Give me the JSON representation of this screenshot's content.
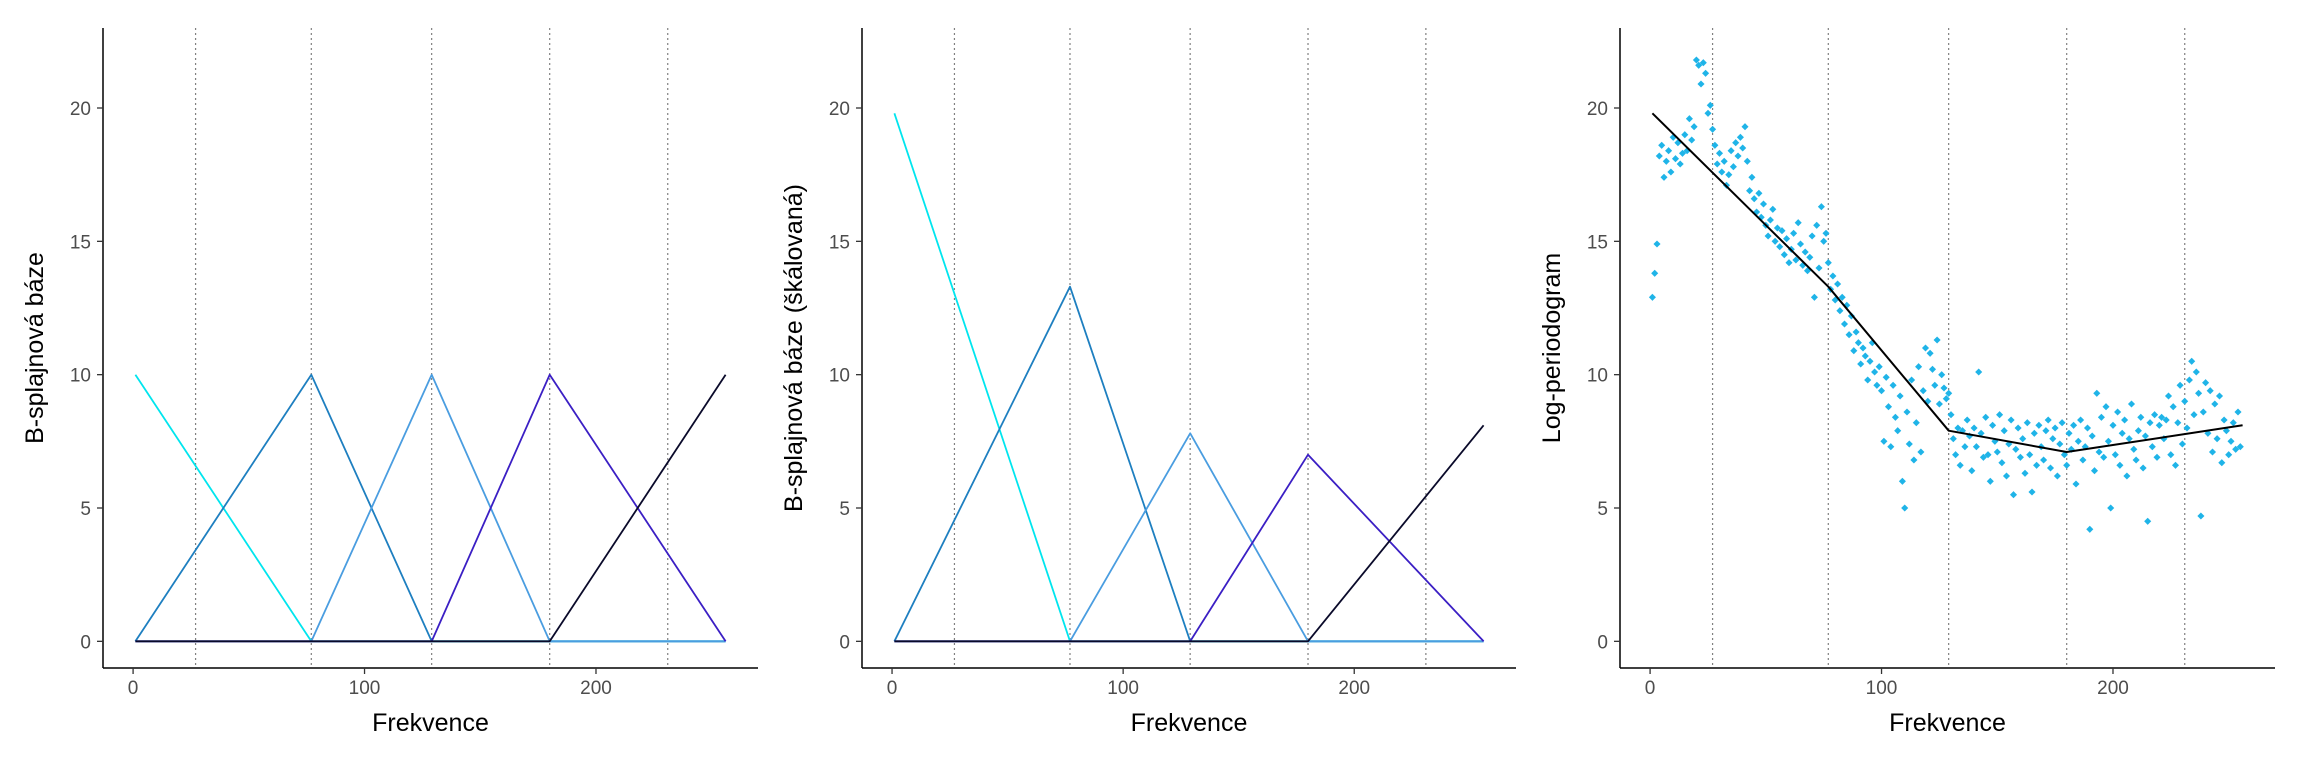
{
  "chart_data": [
    {
      "type": "line",
      "title": "",
      "xlabel": "Frekvence",
      "ylabel": "B-splajnová báze",
      "xlim": [
        -13,
        270
      ],
      "ylim": [
        -1,
        23
      ],
      "xticks": [
        "0",
        "100",
        "200"
      ],
      "yticks": [
        "0",
        "5",
        "10",
        "15",
        "20"
      ],
      "knots": [
        1,
        77,
        129,
        180,
        256
      ],
      "grid_vlines": [
        27,
        77,
        129,
        180,
        231
      ],
      "series": [
        {
          "color": "#00e5ee",
          "x": [
            1,
            77,
            129,
            180,
            256
          ],
          "y": [
            10,
            0,
            0,
            0,
            0
          ]
        },
        {
          "color": "#1e7fc0",
          "x": [
            1,
            77,
            129,
            180,
            256
          ],
          "y": [
            0,
            10,
            0,
            0,
            0
          ]
        },
        {
          "color": "#4a9de0",
          "x": [
            1,
            77,
            129,
            180,
            256
          ],
          "y": [
            0,
            0,
            10,
            0,
            0
          ]
        },
        {
          "color": "#3b1fc4",
          "x": [
            1,
            77,
            129,
            180,
            256
          ],
          "y": [
            0,
            0,
            0,
            10,
            0
          ]
        },
        {
          "color": "#0a0a2a",
          "x": [
            1,
            77,
            129,
            180,
            256
          ],
          "y": [
            0,
            0,
            0,
            0,
            10
          ]
        }
      ]
    },
    {
      "type": "line",
      "title": "",
      "xlabel": "Frekvence",
      "ylabel": "B-splajnová báze (škálovaná)",
      "xlim": [
        -13,
        270
      ],
      "ylim": [
        -1,
        23
      ],
      "xticks": [
        "0",
        "100",
        "200"
      ],
      "yticks": [
        "0",
        "5",
        "10",
        "15",
        "20"
      ],
      "knots": [
        1,
        77,
        129,
        180,
        256
      ],
      "grid_vlines": [
        27,
        77,
        129,
        180,
        231
      ],
      "series": [
        {
          "color": "#00e5ee",
          "x": [
            1,
            77,
            129,
            180,
            256
          ],
          "y": [
            19.8,
            0,
            0,
            0,
            0
          ]
        },
        {
          "color": "#1e7fc0",
          "x": [
            1,
            77,
            129,
            180,
            256
          ],
          "y": [
            0,
            13.3,
            0,
            0,
            0
          ]
        },
        {
          "color": "#4a9de0",
          "x": [
            1,
            77,
            129,
            180,
            256
          ],
          "y": [
            0,
            0,
            7.8,
            0,
            0
          ]
        },
        {
          "color": "#3b1fc4",
          "x": [
            1,
            77,
            129,
            180,
            256
          ],
          "y": [
            0,
            0,
            0,
            7.0,
            0
          ]
        },
        {
          "color": "#0a0a2a",
          "x": [
            1,
            77,
            129,
            180,
            256
          ],
          "y": [
            0,
            0,
            0,
            0,
            8.1
          ]
        }
      ]
    },
    {
      "type": "scatter",
      "title": "",
      "xlabel": "Frekvence",
      "ylabel": "Log-periodogram",
      "xlim": [
        -13,
        270
      ],
      "ylim": [
        -1,
        23
      ],
      "xticks": [
        "0",
        "100",
        "200"
      ],
      "yticks": [
        "0",
        "5",
        "10",
        "15",
        "20"
      ],
      "grid_vlines": [
        27,
        77,
        129,
        180,
        231
      ],
      "points_color": "#1fb4e8",
      "points": [
        [
          1,
          12.9
        ],
        [
          2,
          13.8
        ],
        [
          3,
          14.9
        ],
        [
          4,
          18.2
        ],
        [
          5,
          18.6
        ],
        [
          6,
          17.4
        ],
        [
          7,
          18.0
        ],
        [
          8,
          18.4
        ],
        [
          9,
          17.6
        ],
        [
          10,
          18.9
        ],
        [
          11,
          18.1
        ],
        [
          12,
          18.7
        ],
        [
          13,
          17.9
        ],
        [
          14,
          18.3
        ],
        [
          15,
          19.0
        ],
        [
          16,
          18.4
        ],
        [
          17,
          19.6
        ],
        [
          18,
          18.8
        ],
        [
          19,
          19.3
        ],
        [
          20,
          21.8
        ],
        [
          21,
          21.6
        ],
        [
          22,
          20.9
        ],
        [
          23,
          21.7
        ],
        [
          24,
          21.3
        ],
        [
          25,
          19.8
        ],
        [
          26,
          20.1
        ],
        [
          27,
          19.2
        ],
        [
          28,
          18.6
        ],
        [
          29,
          17.9
        ],
        [
          30,
          18.3
        ],
        [
          31,
          17.6
        ],
        [
          32,
          18.0
        ],
        [
          33,
          17.1
        ],
        [
          34,
          17.5
        ],
        [
          35,
          18.4
        ],
        [
          36,
          17.8
        ],
        [
          37,
          18.7
        ],
        [
          38,
          18.2
        ],
        [
          39,
          18.9
        ],
        [
          40,
          18.5
        ],
        [
          41,
          19.3
        ],
        [
          42,
          18.0
        ],
        [
          43,
          16.9
        ],
        [
          44,
          17.4
        ],
        [
          45,
          16.6
        ],
        [
          46,
          16.1
        ],
        [
          47,
          16.8
        ],
        [
          48,
          15.9
        ],
        [
          49,
          16.4
        ],
        [
          50,
          15.6
        ],
        [
          51,
          15.2
        ],
        [
          52,
          15.8
        ],
        [
          53,
          16.2
        ],
        [
          54,
          15.0
        ],
        [
          55,
          15.5
        ],
        [
          56,
          14.8
        ],
        [
          57,
          15.4
        ],
        [
          58,
          14.5
        ],
        [
          59,
          15.1
        ],
        [
          60,
          14.2
        ],
        [
          61,
          14.7
        ],
        [
          62,
          15.3
        ],
        [
          63,
          14.3
        ],
        [
          64,
          15.7
        ],
        [
          65,
          14.9
        ],
        [
          66,
          14.1
        ],
        [
          67,
          14.6
        ],
        [
          68,
          13.9
        ],
        [
          69,
          14.4
        ],
        [
          70,
          15.2
        ],
        [
          71,
          12.9
        ],
        [
          72,
          15.6
        ],
        [
          73,
          14.0
        ],
        [
          74,
          16.3
        ],
        [
          75,
          15.0
        ],
        [
          76,
          15.3
        ],
        [
          77,
          14.2
        ],
        [
          78,
          13.2
        ],
        [
          79,
          13.7
        ],
        [
          80,
          12.8
        ],
        [
          81,
          13.4
        ],
        [
          82,
          12.4
        ],
        [
          83,
          12.9
        ],
        [
          84,
          11.9
        ],
        [
          85,
          12.6
        ],
        [
          86,
          11.5
        ],
        [
          87,
          12.2
        ],
        [
          88,
          10.9
        ],
        [
          89,
          11.6
        ],
        [
          90,
          11.2
        ],
        [
          91,
          10.4
        ],
        [
          92,
          11.0
        ],
        [
          93,
          10.7
        ],
        [
          94,
          9.8
        ],
        [
          95,
          10.5
        ],
        [
          96,
          11.2
        ],
        [
          97,
          10.1
        ],
        [
          98,
          9.6
        ],
        [
          99,
          10.3
        ],
        [
          100,
          9.4
        ],
        [
          101,
          7.5
        ],
        [
          102,
          9.9
        ],
        [
          103,
          8.8
        ],
        [
          104,
          7.3
        ],
        [
          105,
          9.6
        ],
        [
          106,
          8.4
        ],
        [
          107,
          7.9
        ],
        [
          108,
          9.2
        ],
        [
          109,
          6.0
        ],
        [
          110,
          5.0
        ],
        [
          111,
          8.6
        ],
        [
          112,
          7.4
        ],
        [
          113,
          9.8
        ],
        [
          114,
          6.8
        ],
        [
          115,
          8.2
        ],
        [
          116,
          10.3
        ],
        [
          117,
          7.1
        ],
        [
          118,
          9.4
        ],
        [
          119,
          11.0
        ],
        [
          120,
          9.0
        ],
        [
          121,
          10.8
        ],
        [
          122,
          10.2
        ],
        [
          123,
          9.6
        ],
        [
          124,
          11.3
        ],
        [
          125,
          8.9
        ],
        [
          126,
          10.0
        ],
        [
          127,
          9.5
        ],
        [
          128,
          9.1
        ],
        [
          129,
          9.3
        ],
        [
          130,
          8.5
        ],
        [
          131,
          7.6
        ],
        [
          132,
          7.0
        ],
        [
          133,
          8.0
        ],
        [
          134,
          6.6
        ],
        [
          135,
          7.9
        ],
        [
          136,
          7.3
        ],
        [
          137,
          8.3
        ],
        [
          138,
          7.7
        ],
        [
          139,
          6.4
        ],
        [
          140,
          8.0
        ],
        [
          141,
          7.3
        ],
        [
          142,
          10.1
        ],
        [
          143,
          7.8
        ],
        [
          144,
          6.9
        ],
        [
          145,
          8.4
        ],
        [
          146,
          7.0
        ],
        [
          147,
          6.0
        ],
        [
          148,
          8.1
        ],
        [
          149,
          7.5
        ],
        [
          150,
          7.1
        ],
        [
          151,
          8.5
        ],
        [
          152,
          6.7
        ],
        [
          153,
          7.9
        ],
        [
          154,
          6.2
        ],
        [
          155,
          7.4
        ],
        [
          156,
          8.3
        ],
        [
          157,
          5.5
        ],
        [
          158,
          7.2
        ],
        [
          159,
          8.0
        ],
        [
          160,
          6.9
        ],
        [
          161,
          7.6
        ],
        [
          162,
          6.3
        ],
        [
          163,
          8.2
        ],
        [
          164,
          7.0
        ],
        [
          165,
          5.6
        ],
        [
          166,
          7.8
        ],
        [
          167,
          6.6
        ],
        [
          168,
          8.1
        ],
        [
          169,
          7.3
        ],
        [
          170,
          6.8
        ],
        [
          171,
          7.9
        ],
        [
          172,
          8.3
        ],
        [
          173,
          6.5
        ],
        [
          174,
          7.6
        ],
        [
          175,
          8.0
        ],
        [
          176,
          6.2
        ],
        [
          177,
          7.4
        ],
        [
          178,
          8.2
        ],
        [
          179,
          7.0
        ],
        [
          180,
          6.6
        ],
        [
          181,
          7.8
        ],
        [
          182,
          7.2
        ],
        [
          183,
          8.1
        ],
        [
          184,
          5.9
        ],
        [
          185,
          7.5
        ],
        [
          186,
          8.3
        ],
        [
          187,
          6.8
        ],
        [
          188,
          7.3
        ],
        [
          189,
          8.0
        ],
        [
          190,
          4.2
        ],
        [
          191,
          7.7
        ],
        [
          192,
          6.4
        ],
        [
          193,
          9.3
        ],
        [
          194,
          7.1
        ],
        [
          195,
          8.4
        ],
        [
          196,
          6.9
        ],
        [
          197,
          8.8
        ],
        [
          198,
          7.5
        ],
        [
          199,
          5.0
        ],
        [
          200,
          8.1
        ],
        [
          201,
          7.0
        ],
        [
          202,
          8.6
        ],
        [
          203,
          6.6
        ],
        [
          204,
          7.8
        ],
        [
          205,
          8.3
        ],
        [
          206,
          6.2
        ],
        [
          207,
          7.6
        ],
        [
          208,
          8.9
        ],
        [
          209,
          7.2
        ],
        [
          210,
          6.8
        ],
        [
          211,
          7.9
        ],
        [
          212,
          8.4
        ],
        [
          213,
          6.5
        ],
        [
          214,
          7.7
        ],
        [
          215,
          4.5
        ],
        [
          216,
          8.2
        ],
        [
          217,
          7.3
        ],
        [
          218,
          8.5
        ],
        [
          219,
          6.9
        ],
        [
          220,
          8.1
        ],
        [
          221,
          8.4
        ],
        [
          222,
          7.6
        ],
        [
          223,
          8.3
        ],
        [
          224,
          9.2
        ],
        [
          225,
          7.0
        ],
        [
          226,
          8.8
        ],
        [
          227,
          6.6
        ],
        [
          228,
          8.2
        ],
        [
          229,
          9.6
        ],
        [
          230,
          7.4
        ],
        [
          231,
          9.0
        ],
        [
          232,
          8.0
        ],
        [
          233,
          9.8
        ],
        [
          234,
          10.5
        ],
        [
          235,
          8.5
        ],
        [
          236,
          10.1
        ],
        [
          237,
          9.3
        ],
        [
          238,
          4.7
        ],
        [
          239,
          8.6
        ],
        [
          240,
          9.7
        ],
        [
          241,
          7.8
        ],
        [
          242,
          9.4
        ],
        [
          243,
          7.1
        ],
        [
          244,
          8.9
        ],
        [
          245,
          7.6
        ],
        [
          246,
          9.2
        ],
        [
          247,
          6.7
        ],
        [
          248,
          8.3
        ],
        [
          249,
          7.9
        ],
        [
          250,
          7.0
        ],
        [
          251,
          7.5
        ],
        [
          252,
          8.2
        ],
        [
          253,
          7.2
        ],
        [
          254,
          8.6
        ],
        [
          255,
          7.3
        ]
      ],
      "fit_line": {
        "color": "#000000",
        "x": [
          1,
          77,
          129,
          180,
          256
        ],
        "y": [
          19.8,
          13.3,
          7.9,
          7.1,
          8.1
        ]
      }
    }
  ]
}
